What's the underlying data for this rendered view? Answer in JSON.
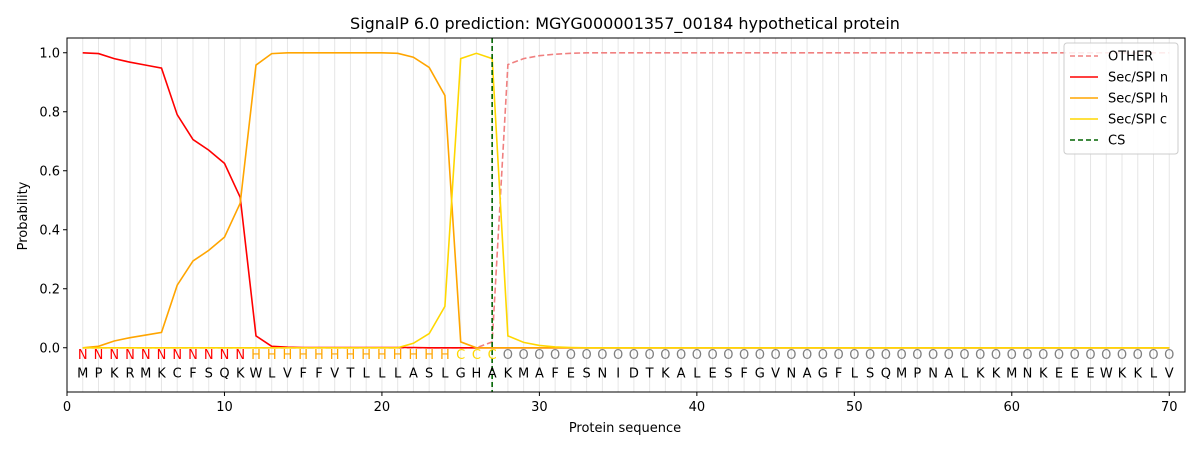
{
  "chart_data": {
    "type": "line",
    "title": "SignalP 6.0 prediction: MGYG000001357_00184 hypothetical protein",
    "xlabel": "Protein sequence",
    "ylabel": "Probability",
    "xlim": [
      0,
      71
    ],
    "ylim": [
      -0.15,
      1.05
    ],
    "xticks": [
      0,
      10,
      20,
      30,
      40,
      50,
      60,
      70
    ],
    "yticks": [
      0.0,
      0.2,
      0.4,
      0.6,
      0.8,
      1.0
    ],
    "xtick_labels": [
      "0",
      "10",
      "20",
      "30",
      "40",
      "50",
      "60",
      "70"
    ],
    "ytick_labels": [
      "0.0",
      "0.2",
      "0.4",
      "0.6",
      "0.8",
      "1.0"
    ],
    "grid": "vertical lines at each residue",
    "legend_position": "top-right",
    "sequence": [
      "M",
      "P",
      "K",
      "R",
      "M",
      "K",
      "C",
      "F",
      "S",
      "Q",
      "K",
      "W",
      "L",
      "V",
      "F",
      "F",
      "V",
      "T",
      "L",
      "L",
      "L",
      "A",
      "S",
      "L",
      "G",
      "H",
      "A",
      "K",
      "M",
      "A",
      "F",
      "E",
      "S",
      "N",
      "I",
      "D",
      "T",
      "K",
      "A",
      "L",
      "E",
      "S",
      "F",
      "G",
      "V",
      "N",
      "A",
      "G",
      "F",
      "L",
      "S",
      "Q",
      "M",
      "P",
      "N",
      "A",
      "L",
      "K",
      "K",
      "M",
      "N",
      "K",
      "E",
      "E",
      "E",
      "W",
      "K",
      "K",
      "L",
      "V"
    ],
    "labels": [
      "N",
      "N",
      "N",
      "N",
      "N",
      "N",
      "N",
      "N",
      "N",
      "N",
      "N",
      "H",
      "H",
      "H",
      "H",
      "H",
      "H",
      "H",
      "H",
      "H",
      "H",
      "H",
      "H",
      "H",
      "C",
      "C",
      "C",
      "O",
      "O",
      "O",
      "O",
      "O",
      "O",
      "O",
      "O",
      "O",
      "O",
      "O",
      "O",
      "O",
      "O",
      "O",
      "O",
      "O",
      "O",
      "O",
      "O",
      "O",
      "O",
      "O",
      "O",
      "O",
      "O",
      "O",
      "O",
      "O",
      "O",
      "O",
      "O",
      "O",
      "O",
      "O",
      "O",
      "O",
      "O",
      "O",
      "O",
      "O",
      "O",
      "O"
    ],
    "label_colors": {
      "N": "#ff0000",
      "H": "#ffa500",
      "C": "#ffd700",
      "O": "#808080"
    },
    "cs_position": 27,
    "x": [
      1,
      2,
      3,
      4,
      5,
      6,
      7,
      8,
      9,
      10,
      11,
      12,
      13,
      14,
      15,
      16,
      17,
      18,
      19,
      20,
      21,
      22,
      23,
      24,
      25,
      26,
      27,
      28,
      29,
      30,
      31,
      32,
      33,
      34,
      35,
      36,
      37,
      38,
      39,
      40,
      41,
      42,
      43,
      44,
      45,
      46,
      47,
      48,
      49,
      50,
      51,
      52,
      53,
      54,
      55,
      56,
      57,
      58,
      59,
      60,
      61,
      62,
      63,
      64,
      65,
      66,
      67,
      68,
      69,
      70
    ],
    "series": [
      {
        "name": "OTHER",
        "color": "#f08080",
        "style": "dashed",
        "values": [
          0,
          0,
          0,
          0,
          0,
          0,
          0,
          0,
          0,
          0,
          0,
          0,
          0,
          0,
          0,
          0,
          0,
          0,
          0,
          0,
          0,
          0,
          0,
          0,
          0,
          0,
          0.02,
          0.96,
          0.98,
          0.99,
          0.995,
          0.998,
          1,
          1,
          1,
          1,
          1,
          1,
          1,
          1,
          1,
          1,
          1,
          1,
          1,
          1,
          1,
          1,
          1,
          1,
          1,
          1,
          1,
          1,
          1,
          1,
          1,
          1,
          1,
          1,
          1,
          1,
          1,
          1,
          1,
          1,
          1,
          1,
          1,
          1
        ]
      },
      {
        "name": "Sec/SPI n",
        "color": "#ff0000",
        "style": "solid",
        "values": [
          1.0,
          0.997,
          0.98,
          0.968,
          0.958,
          0.948,
          0.79,
          0.706,
          0.67,
          0.625,
          0.51,
          0.04,
          0.005,
          0.002,
          0.001,
          0.001,
          0.001,
          0.001,
          0.001,
          0.001,
          0.001,
          0.001,
          0,
          0,
          0,
          0,
          0,
          0,
          0,
          0,
          0,
          0,
          0,
          0,
          0,
          0,
          0,
          0,
          0,
          0,
          0,
          0,
          0,
          0,
          0,
          0,
          0,
          0,
          0,
          0,
          0,
          0,
          0,
          0,
          0,
          0,
          0,
          0,
          0,
          0,
          0,
          0,
          0,
          0,
          0,
          0,
          0,
          0,
          0,
          0
        ]
      },
      {
        "name": "Sec/SPI h",
        "color": "#ffa500",
        "style": "solid",
        "values": [
          0,
          0.005,
          0.023,
          0.034,
          0.043,
          0.052,
          0.212,
          0.294,
          0.33,
          0.375,
          0.49,
          0.958,
          0.997,
          1.0,
          1.0,
          1.0,
          1.0,
          1.0,
          1.0,
          1.0,
          0.998,
          0.985,
          0.95,
          0.855,
          0.02,
          0,
          0,
          0,
          0,
          0,
          0,
          0,
          0,
          0,
          0,
          0,
          0,
          0,
          0,
          0,
          0,
          0,
          0,
          0,
          0,
          0,
          0,
          0,
          0,
          0,
          0,
          0,
          0,
          0,
          0,
          0,
          0,
          0,
          0,
          0,
          0,
          0,
          0,
          0,
          0,
          0,
          0,
          0,
          0,
          0
        ]
      },
      {
        "name": "Sec/SPI c",
        "color": "#ffd700",
        "style": "solid",
        "values": [
          0,
          0,
          0,
          0,
          0,
          0,
          0,
          0,
          0,
          0,
          0,
          0,
          0,
          0,
          0,
          0,
          0,
          0,
          0,
          0,
          0,
          0.015,
          0.048,
          0.14,
          0.98,
          0.998,
          0.98,
          0.04,
          0.018,
          0.008,
          0.003,
          0.001,
          0,
          0,
          0,
          0,
          0,
          0,
          0,
          0,
          0,
          0,
          0,
          0,
          0,
          0,
          0,
          0,
          0,
          0,
          0,
          0,
          0,
          0,
          0,
          0,
          0,
          0,
          0,
          0,
          0,
          0,
          0,
          0,
          0,
          0,
          0,
          0,
          0,
          0
        ]
      }
    ],
    "legend": [
      "OTHER",
      "Sec/SPI n",
      "Sec/SPI h",
      "Sec/SPI c",
      "CS"
    ],
    "cs_color": "#006400"
  }
}
